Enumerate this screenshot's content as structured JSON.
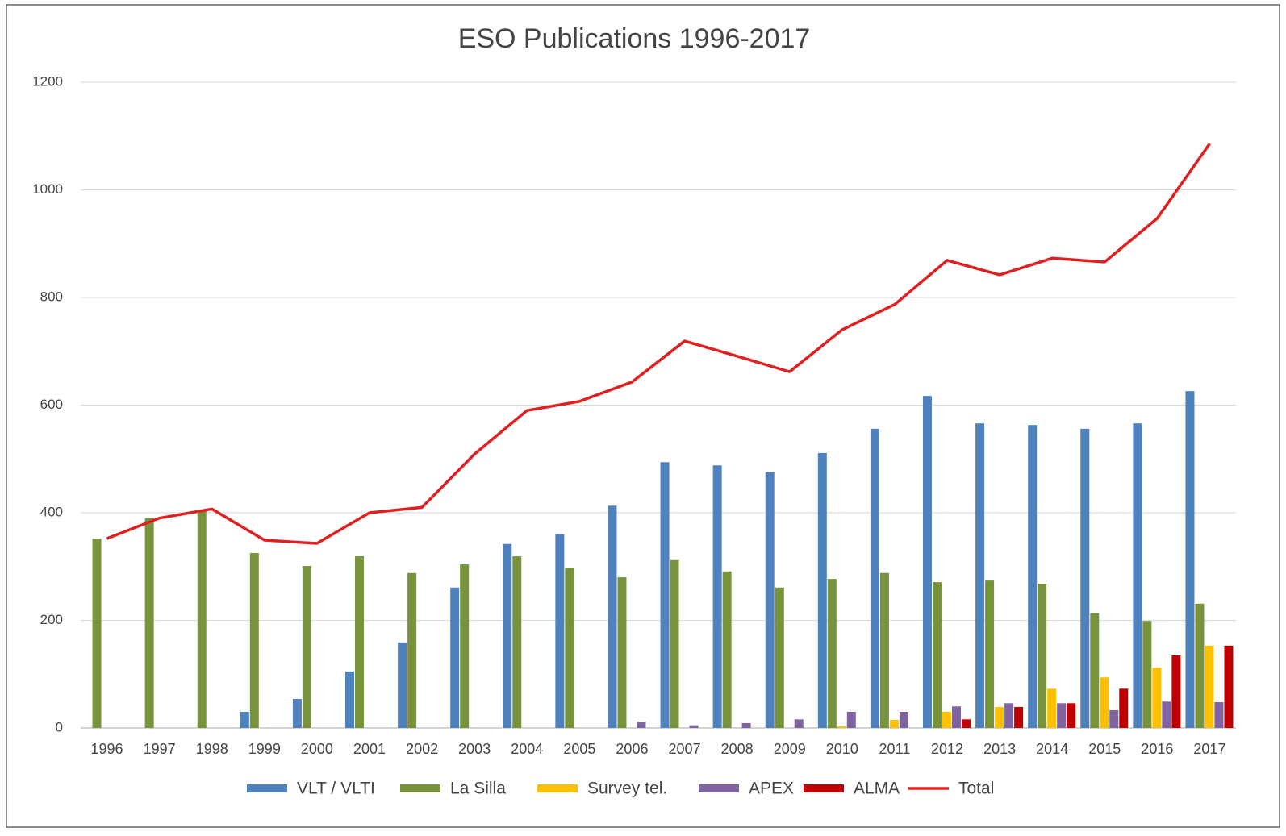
{
  "chart_data": {
    "type": "bar_line",
    "title": "ESO Publications 1996-2017",
    "categories": [
      "1996",
      "1997",
      "1998",
      "1999",
      "2000",
      "2001",
      "2002",
      "2003",
      "2004",
      "2005",
      "2006",
      "2007",
      "2008",
      "2009",
      "2010",
      "2011",
      "2012",
      "2013",
      "2014",
      "2015",
      "2016",
      "2017"
    ],
    "series": [
      {
        "name": "VLT / VLTI",
        "color": "#4f81bd",
        "type": "bar",
        "values": [
          null,
          null,
          null,
          30,
          54,
          105,
          159,
          261,
          342,
          360,
          413,
          494,
          488,
          475,
          511,
          556,
          617,
          566,
          563,
          556,
          566,
          626
        ]
      },
      {
        "name": "La Silla",
        "color": "#77933c",
        "type": "bar",
        "values": [
          352,
          390,
          406,
          325,
          301,
          319,
          288,
          304,
          319,
          298,
          280,
          312,
          291,
          261,
          277,
          288,
          271,
          274,
          268,
          213,
          199,
          231
        ]
      },
      {
        "name": "Survey tel.",
        "color": "#ffc000",
        "type": "bar",
        "values": [
          null,
          null,
          null,
          null,
          null,
          null,
          null,
          null,
          null,
          null,
          null,
          null,
          null,
          null,
          3,
          15,
          30,
          39,
          73,
          94,
          112,
          153
        ]
      },
      {
        "name": "APEX",
        "color": "#8064a2",
        "type": "bar",
        "values": [
          null,
          null,
          null,
          null,
          null,
          null,
          null,
          null,
          null,
          null,
          12,
          5,
          9,
          16,
          30,
          30,
          40,
          46,
          46,
          33,
          49,
          48
        ]
      },
      {
        "name": "ALMA",
        "color": "#c00000",
        "type": "bar",
        "values": [
          null,
          null,
          null,
          null,
          null,
          null,
          null,
          null,
          null,
          null,
          null,
          null,
          null,
          null,
          null,
          null,
          16,
          39,
          46,
          73,
          135,
          153
        ]
      },
      {
        "name": "Total",
        "color": "#e02020",
        "type": "line",
        "values": [
          352,
          390,
          407,
          349,
          343,
          400,
          410,
          509,
          590,
          607,
          643,
          719,
          691,
          662,
          740,
          787,
          869,
          842,
          873,
          866,
          947,
          1086
        ]
      }
    ],
    "ylim": [
      0,
      1200
    ],
    "yticks": [
      0,
      200,
      400,
      600,
      800,
      1000,
      1200
    ],
    "grid": true,
    "legend": "bottom"
  }
}
